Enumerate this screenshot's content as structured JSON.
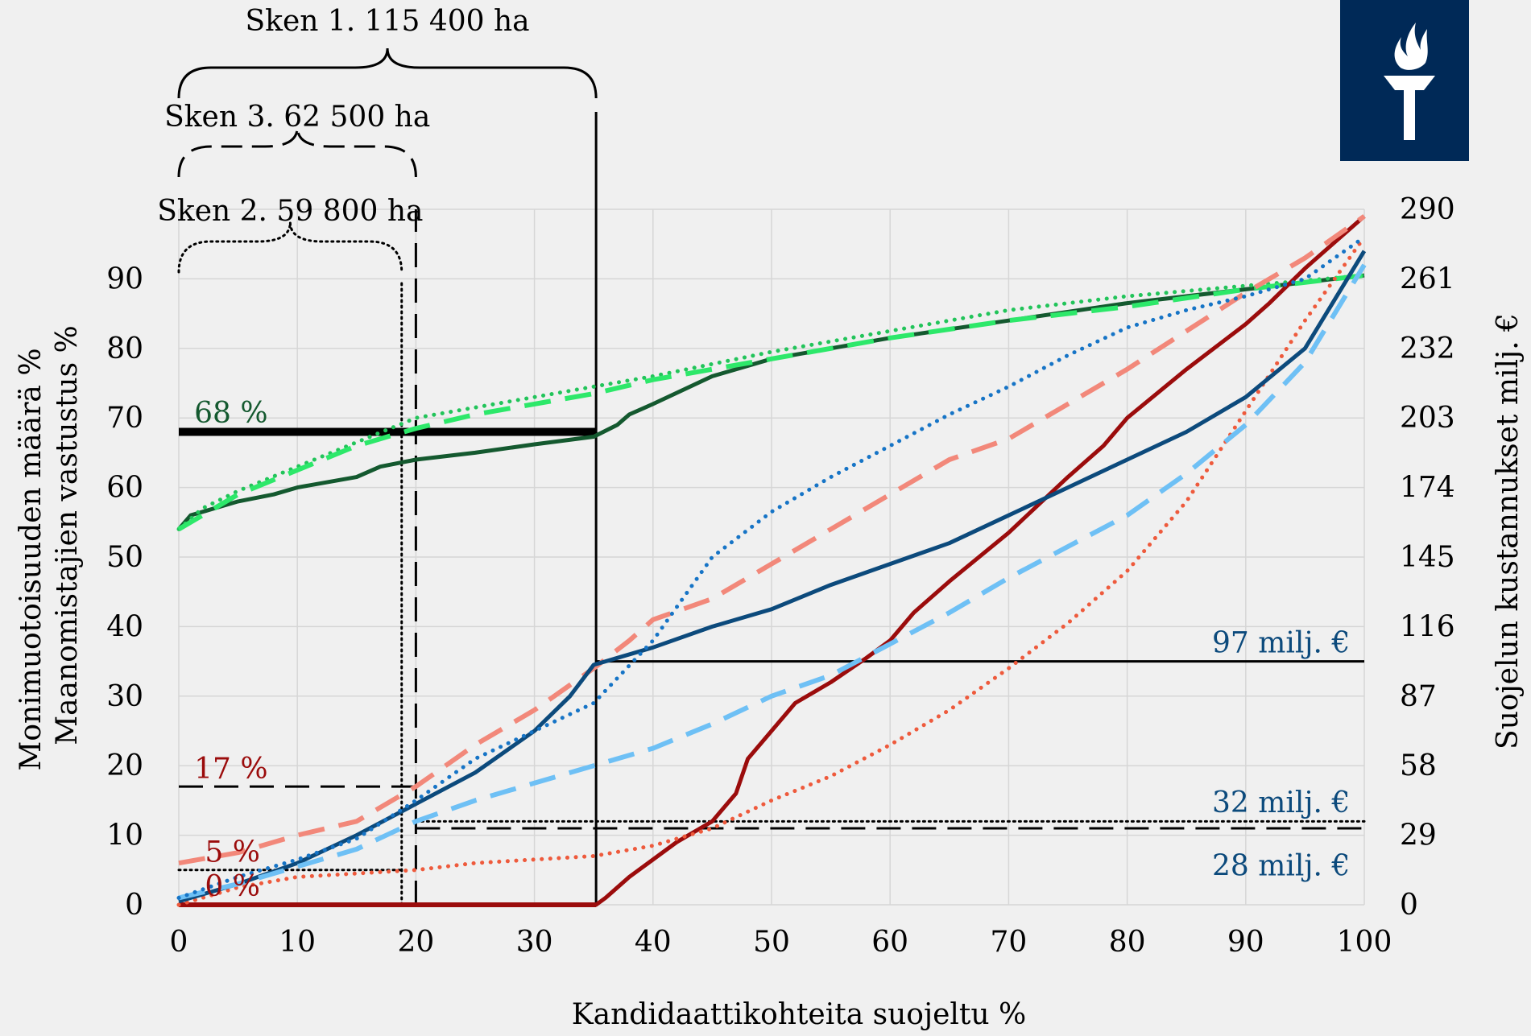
{
  "colors": {
    "background": "#f0f0f0",
    "grid": "#d6d6d6",
    "dark_green": "#14592f",
    "light_green": "#22c45a",
    "bright_green": "#2de86a",
    "dark_red": "#9b0c0c",
    "salmon": "#f2887a",
    "red_dotted": "#ee5a3c",
    "navy": "#0c4a7c",
    "light_blue": "#6ec0f5",
    "mid_blue": "#1674c6",
    "black": "#000000",
    "logo_bg": "#002957",
    "logo_fg": "#ffffff"
  },
  "icons": {
    "logo": "torch-logo-icon"
  },
  "chart_data": {
    "type": "line",
    "xlabel": "Kandidaattikohteita suojeltu %",
    "ylabel_left": [
      "Monimuotoisuuden määrä %",
      "Maanomistajien vastustus %"
    ],
    "ylabel_right": "Suojelun kustannukset milj. €",
    "xlim": [
      0,
      100
    ],
    "ylim_left": [
      0,
      100
    ],
    "ylim_right": [
      0,
      290
    ],
    "x_ticks": [
      "0",
      "10",
      "20",
      "30",
      "40",
      "50",
      "60",
      "70",
      "80",
      "90",
      "100"
    ],
    "y_ticks_left": [
      "0",
      "10",
      "20",
      "30",
      "40",
      "50",
      "60",
      "70",
      "80",
      "90"
    ],
    "y_ticks_right": [
      "0",
      "29",
      "58",
      "87",
      "116",
      "145",
      "174",
      "203",
      "232",
      "261",
      "290"
    ],
    "grid": true,
    "series": [
      {
        "color": "dark_green",
        "style": "solid",
        "width": 5,
        "x": [
          0,
          1,
          3,
          5,
          8,
          10,
          15,
          17,
          20,
          25,
          30,
          35,
          37,
          38,
          40,
          45,
          50,
          55,
          60,
          70,
          80,
          90,
          100
        ],
        "y": [
          54,
          56,
          57,
          58,
          59,
          60,
          61.5,
          63,
          64,
          65,
          66.2,
          67.3,
          69,
          70.5,
          72,
          76,
          78.5,
          80,
          81.5,
          84,
          86.5,
          88.5,
          90.5
        ]
      },
      {
        "color": "light_green",
        "style": "dotted",
        "width": 5,
        "x": [
          0,
          2,
          5,
          10,
          15,
          20,
          25,
          30,
          35,
          40,
          50,
          60,
          70,
          80,
          90,
          100
        ],
        "y": [
          54,
          57,
          59.5,
          63,
          66.5,
          70,
          71.5,
          73,
          74.5,
          76,
          79.5,
          82.5,
          85.5,
          87.5,
          89,
          90.5
        ]
      },
      {
        "color": "bright_green",
        "style": "dashed",
        "width": 6,
        "x": [
          0,
          3,
          5,
          10,
          15,
          20,
          25,
          30,
          35,
          40,
          50,
          60,
          70,
          80,
          90,
          100
        ],
        "y": [
          54,
          57,
          59,
          62.5,
          66,
          68.5,
          70.5,
          72,
          73.5,
          75.5,
          78.5,
          81.5,
          84,
          86,
          88.5,
          90.5
        ]
      },
      {
        "color": "dark_red",
        "style": "solid",
        "width": 5,
        "x": [
          0,
          35.2,
          36,
          38,
          40,
          42,
          45,
          47,
          48,
          50,
          52,
          55,
          58,
          60,
          62,
          65,
          70,
          75,
          78,
          80,
          85,
          90,
          92,
          95,
          100
        ],
        "y": [
          0,
          0,
          1,
          4,
          6.5,
          9,
          12,
          16,
          21,
          25,
          29,
          32,
          35.5,
          38,
          42,
          46.5,
          53.5,
          61.5,
          66,
          70,
          77,
          83.5,
          86.5,
          91.5,
          99
        ]
      },
      {
        "color": "salmon",
        "style": "dashed",
        "width": 6,
        "x": [
          0,
          5,
          10,
          15,
          20,
          25,
          30,
          35,
          38,
          40,
          45,
          50,
          55,
          60,
          65,
          70,
          75,
          80,
          85,
          90,
          95,
          100
        ],
        "y": [
          6,
          7.5,
          10,
          12,
          17,
          23,
          28,
          34,
          38,
          41,
          44,
          49,
          54,
          59,
          64,
          67,
          72,
          77,
          82.5,
          88,
          93,
          99
        ]
      },
      {
        "color": "red_dotted",
        "style": "dotted",
        "width": 5,
        "x": [
          0,
          5,
          10,
          15,
          20,
          25,
          30,
          35,
          40,
          45,
          50,
          55,
          60,
          65,
          70,
          75,
          80,
          85,
          90,
          95,
          100
        ],
        "y": [
          0,
          2.5,
          4,
          4.5,
          5,
          6,
          6.5,
          7,
          8.5,
          11,
          15,
          18.5,
          23,
          28,
          34,
          40.5,
          48,
          58,
          71,
          84,
          96
        ]
      },
      {
        "color": "navy",
        "style": "solid",
        "width": 5,
        "x": [
          0,
          5,
          10,
          15,
          20,
          25,
          30,
          33,
          35,
          36,
          40,
          45,
          50,
          55,
          60,
          65,
          70,
          75,
          80,
          85,
          90,
          95,
          100
        ],
        "y": [
          0.5,
          3,
          6,
          10,
          14.5,
          19,
          25,
          30,
          34.5,
          35,
          37,
          40,
          42.5,
          46,
          49,
          52,
          56,
          60,
          64,
          68,
          73,
          80,
          94
        ]
      },
      {
        "color": "light_blue",
        "style": "dashed",
        "width": 6,
        "x": [
          0,
          5,
          10,
          15,
          20,
          25,
          30,
          35,
          40,
          45,
          50,
          55,
          60,
          65,
          70,
          75,
          80,
          85,
          90,
          95,
          100
        ],
        "y": [
          1,
          3,
          5.5,
          8,
          12,
          15,
          17.5,
          20,
          22.5,
          26,
          30,
          33,
          37.5,
          42,
          47,
          51.5,
          56,
          62,
          69,
          78,
          92
        ]
      },
      {
        "color": "mid_blue",
        "style": "dotted",
        "width": 5,
        "x": [
          0,
          5,
          10,
          15,
          20,
          25,
          30,
          35,
          40,
          45,
          50,
          55,
          60,
          65,
          70,
          75,
          80,
          85,
          90,
          95,
          100
        ],
        "y": [
          1,
          4,
          6.5,
          9.5,
          15,
          21,
          25,
          29,
          38,
          50,
          56.5,
          61.5,
          66,
          70.5,
          74.5,
          79,
          83,
          85.5,
          87.5,
          90,
          96
        ]
      }
    ],
    "reference_lines": [
      {
        "kind": "h",
        "y": 68,
        "x_from": 0,
        "x_to": 35.2,
        "style": "solid",
        "width": 10
      },
      {
        "kind": "h",
        "y": 17,
        "x_from": 0,
        "x_to": 20,
        "style": "dashed",
        "width": 3
      },
      {
        "kind": "h",
        "y": 5,
        "x_from": 0,
        "x_to": 18.8,
        "style": "dotted",
        "width": 3
      },
      {
        "kind": "h",
        "y": 35,
        "x_from": 35.2,
        "x_to": 100,
        "style": "solid",
        "width": 3
      },
      {
        "kind": "h",
        "y": 12,
        "x_from": 20,
        "x_to": 100,
        "style": "dotted",
        "width": 3
      },
      {
        "kind": "h",
        "y": 11,
        "x_from": 20,
        "x_to": 100,
        "style": "dashed",
        "width": 3
      },
      {
        "kind": "v",
        "x": 35.2,
        "y_from": 0,
        "y_to": 114,
        "style": "solid",
        "width": 3
      },
      {
        "kind": "v",
        "x": 20,
        "y_from": 0,
        "y_to": 100,
        "style": "dashed",
        "width": 3
      },
      {
        "kind": "v",
        "x": 18.8,
        "y_from": 0,
        "y_to": 89.5,
        "style": "dotted",
        "width": 3
      },
      {
        "kind": "h",
        "y": 0,
        "x_from": 0,
        "x_to": 35.2,
        "style": "solid",
        "width": 6,
        "color": "dark_red"
      }
    ],
    "annotations": [
      {
        "text": "68 %",
        "x": 1.3,
        "y": 69.3,
        "color": "dark_green",
        "anchor": "start"
      },
      {
        "text": "17 %",
        "x": 1.3,
        "y": 18.2,
        "color": "dark_red",
        "anchor": "start"
      },
      {
        "text": "5 %",
        "x": 2.2,
        "y": 6.2,
        "color": "dark_red",
        "anchor": "start"
      },
      {
        "text": "0 %",
        "x": 2.2,
        "y": 1.3,
        "color": "dark_red",
        "anchor": "start"
      },
      {
        "text": "97 milj. €",
        "x": 98.8,
        "y": 36.3,
        "color": "navy",
        "anchor": "end"
      },
      {
        "text": "32 milj. €",
        "x": 98.8,
        "y": 13.3,
        "color": "navy",
        "anchor": "end"
      },
      {
        "text": "28 milj. €",
        "x": 98.8,
        "y": 4.2,
        "color": "navy",
        "anchor": "end"
      }
    ],
    "braces": [
      {
        "label": "Sken 1. 115 400 ha",
        "x_from": 0,
        "x_to": 35.2,
        "style": "solid"
      },
      {
        "label": "Sken 3. 62 500 ha",
        "x_from": 0,
        "x_to": 20,
        "style": "dashed"
      },
      {
        "label": "Sken 2. 59 800 ha",
        "x_from": 0,
        "x_to": 18.8,
        "style": "dotted"
      }
    ]
  }
}
